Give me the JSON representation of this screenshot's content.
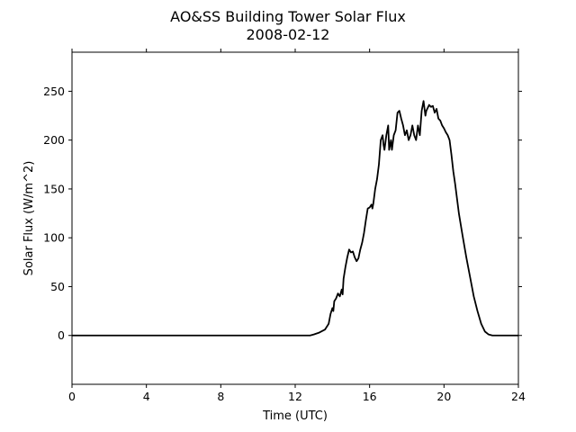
{
  "chart_data": {
    "type": "line",
    "title": "AO&SS Building Tower Solar Flux",
    "subtitle": "2008-02-12",
    "xlabel": "Time (UTC)",
    "ylabel": "Solar Flux (W/m^2)",
    "xlim": [
      0,
      24
    ],
    "ylim": [
      -50,
      290
    ],
    "xticks": [
      0,
      4,
      8,
      12,
      16,
      20,
      24
    ],
    "yticks": [
      0,
      50,
      100,
      150,
      200,
      250
    ],
    "grid": false,
    "line_color": "#000000",
    "series": [
      {
        "x": [
          0,
          12.0,
          12.8,
          13.0,
          13.3,
          13.6,
          13.8,
          13.9,
          14.0,
          14.05,
          14.1,
          14.2,
          14.3,
          14.4,
          14.5,
          14.55,
          14.6,
          14.7,
          14.8,
          14.9,
          15.0,
          15.1,
          15.2,
          15.3,
          15.4,
          15.5,
          15.6,
          15.7,
          15.8,
          15.9,
          16.0,
          16.1,
          16.15,
          16.2,
          16.3,
          16.4,
          16.5,
          16.6,
          16.7,
          16.75,
          16.8,
          16.9,
          17.0,
          17.05,
          17.1,
          17.15,
          17.2,
          17.3,
          17.4,
          17.5,
          17.6,
          17.7,
          17.8,
          17.9,
          18.0,
          18.1,
          18.2,
          18.3,
          18.4,
          18.5,
          18.6,
          18.7,
          18.8,
          18.9,
          19.0,
          19.05,
          19.1,
          19.2,
          19.3,
          19.4,
          19.5,
          19.6,
          19.7,
          19.8,
          19.9,
          20.0,
          20.1,
          20.2,
          20.3,
          20.4,
          20.5,
          20.6,
          20.7,
          20.8,
          21.0,
          21.2,
          21.4,
          21.6,
          21.8,
          22.0,
          22.2,
          22.4,
          22.6,
          22.8,
          23.0,
          23.2,
          23.4,
          23.6,
          23.8,
          24.0
        ],
        "y": [
          0,
          0,
          0,
          1,
          3,
          6,
          12,
          22,
          28,
          25,
          35,
          38,
          43,
          40,
          47,
          42,
          58,
          70,
          80,
          88,
          85,
          86,
          80,
          76,
          79,
          88,
          95,
          105,
          118,
          130,
          131,
          134,
          130,
          135,
          150,
          160,
          175,
          200,
          205,
          195,
          190,
          205,
          215,
          190,
          195,
          200,
          190,
          205,
          210,
          228,
          230,
          222,
          215,
          205,
          210,
          200,
          205,
          215,
          205,
          200,
          215,
          205,
          230,
          240,
          225,
          230,
          232,
          236,
          234,
          235,
          228,
          232,
          222,
          220,
          215,
          212,
          208,
          205,
          200,
          185,
          168,
          155,
          140,
          125,
          102,
          80,
          60,
          40,
          25,
          12,
          4,
          1,
          0,
          0,
          0,
          0,
          0,
          0,
          0,
          0
        ]
      }
    ]
  }
}
